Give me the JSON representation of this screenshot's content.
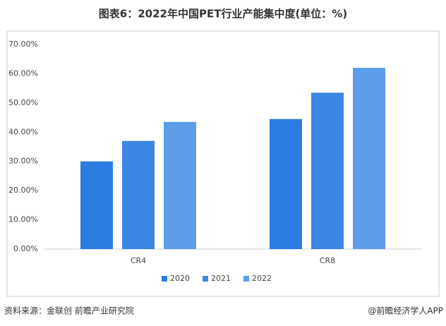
{
  "chart_data": {
    "type": "bar",
    "title": "图表6：2022年中国PET行业产能集中度(单位：%)",
    "categories": [
      "CR4",
      "CR8"
    ],
    "series": [
      {
        "name": "2020",
        "color": "#2b7de1",
        "values": [
          30,
          44.5
        ]
      },
      {
        "name": "2021",
        "color": "#3b87e3",
        "values": [
          37,
          53.5
        ]
      },
      {
        "name": "2022",
        "color": "#5b9de8",
        "values": [
          43.5,
          62
        ]
      }
    ],
    "ylim": [
      0,
      70
    ],
    "yticks": [
      {
        "value": 0,
        "label": "0.00%"
      },
      {
        "value": 10,
        "label": "10.00%"
      },
      {
        "value": 20,
        "label": "20.00%"
      },
      {
        "value": 30,
        "label": "30.00%"
      },
      {
        "value": 40,
        "label": "40.00%"
      },
      {
        "value": 50,
        "label": "50.00%"
      },
      {
        "value": 60,
        "label": "60.00%"
      },
      {
        "value": 70,
        "label": "70.00%"
      }
    ],
    "grid": false,
    "legend": "bottom",
    "source": "资料来源：金联创 前瞻产业研究院",
    "credit": "@前瞻经济学人APP"
  }
}
